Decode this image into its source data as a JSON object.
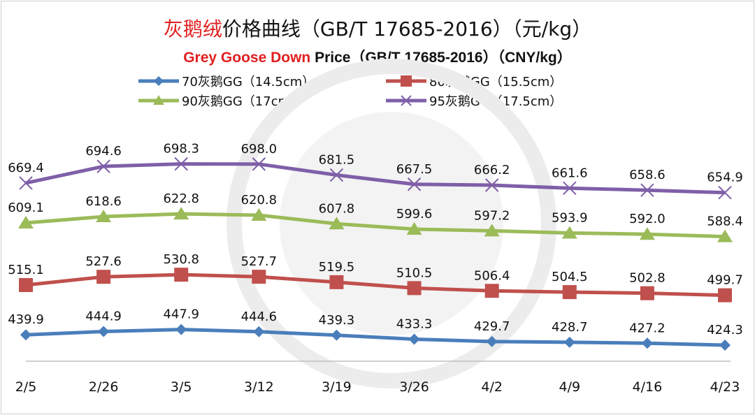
{
  "chart_data": {
    "type": "line",
    "title_red": "灰鹅绒",
    "title_rest": "价格曲线（GB/T 17685-2016）（元/kg）",
    "subtitle_red": "Grey Goose Down",
    "subtitle_rest": " Price（GB/T 17685-2016）（CNY/kg）",
    "categories": [
      "2/5",
      "2/26",
      "3/5",
      "3/12",
      "3/19",
      "3/26",
      "4/2",
      "4/9",
      "4/16",
      "4/23"
    ],
    "ylim": [
      400,
      700
    ],
    "grid": false,
    "legend_position": "top",
    "series": [
      {
        "name": "70灰鹅GG（14.5cm）",
        "color": "#4a7ebb",
        "marker": "diamond",
        "values": [
          439.9,
          444.9,
          447.9,
          444.6,
          439.3,
          433.3,
          429.7,
          428.7,
          427.2,
          424.3
        ]
      },
      {
        "name": "80灰鹅GG（15.5cm）",
        "color": "#c0504d",
        "marker": "square",
        "values": [
          515.1,
          527.6,
          530.8,
          527.7,
          519.5,
          510.5,
          506.4,
          504.5,
          502.8,
          499.7
        ]
      },
      {
        "name": "90灰鹅GG（17cm）",
        "color": "#9bbb59",
        "marker": "triangle",
        "values": [
          609.1,
          618.6,
          622.8,
          620.8,
          607.8,
          599.6,
          597.2,
          593.9,
          592.0,
          588.4
        ]
      },
      {
        "name": "95灰鹅GG（17.5cm）",
        "color": "#7f5fa8",
        "marker": "x",
        "values": [
          669.4,
          694.6,
          698.3,
          698.0,
          681.5,
          667.5,
          666.2,
          661.6,
          658.6,
          654.9
        ]
      }
    ]
  }
}
